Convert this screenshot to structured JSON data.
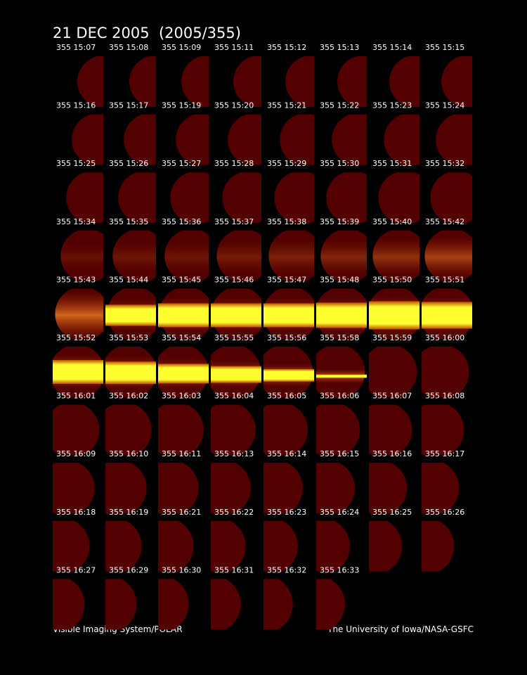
{
  "title": "21 DEC 2005  (2005/355)",
  "frames": [
    "355 15:07",
    "355 15:08",
    "355 15:09",
    "355 15:11",
    "355 15:12",
    "355 15:13",
    "355 15:14",
    "355 15:15",
    "355 15:16",
    "355 15:17",
    "355 15:19",
    "355 15:20",
    "355 15:21",
    "355 15:22",
    "355 15:23",
    "355 15:24",
    "355 15:25",
    "355 15:26",
    "355 15:27",
    "355 15:28",
    "355 15:29",
    "355 15:30",
    "355 15:31",
    "355 15:32",
    "355 15:34",
    "355 15:35",
    "355 15:36",
    "355 15:37",
    "355 15:38",
    "355 15:39",
    "355 15:40",
    "355 15:42",
    "355 15:43",
    "355 15:44",
    "355 15:45",
    "355 15:46",
    "355 15:47",
    "355 15:48",
    "355 15:50",
    "355 15:51",
    "355 15:52",
    "355 15:53",
    "355 15:54",
    "355 15:55",
    "355 15:56",
    "355 15:58",
    "355 15:59",
    "355 16:00",
    "355 16:01",
    "355 16:02",
    "355 16:03",
    "355 16:04",
    "355 16:05",
    "355 16:06",
    "355 16:07",
    "355 16:08",
    "355 16:09",
    "355 16:10",
    "355 16:11",
    "355 16:13",
    "355 16:14",
    "355 16:15",
    "355 16:16",
    "355 16:17",
    "355 16:18",
    "355 16:19",
    "355 16:21",
    "355 16:22",
    "355 16:23",
    "355 16:24",
    "355 16:25",
    "355 16:26",
    "355 16:27",
    "355 16:29",
    "355 16:30",
    "355 16:31",
    "355 16:32",
    "355 16:33"
  ],
  "footer": {
    "left": "Visible Imaging System/POLAR",
    "right": "The University of Iowa/NASA-GSFC"
  }
}
